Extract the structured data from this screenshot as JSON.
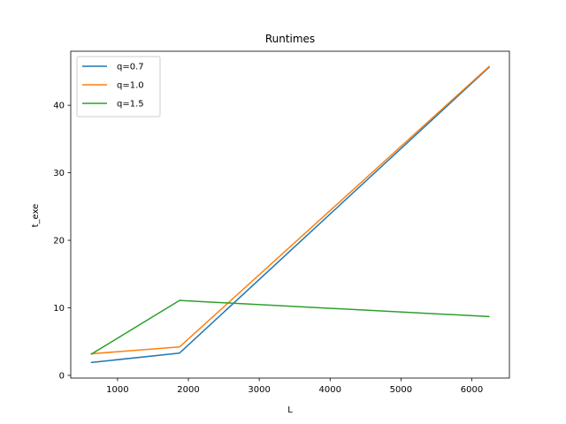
{
  "chart_data": {
    "type": "line",
    "title": "Runtimes",
    "xlabel": "L",
    "ylabel": "t_exe",
    "xlim": [
      340,
      6530
    ],
    "ylim": [
      -0.4,
      48.0
    ],
    "xticks": [
      1000,
      2000,
      3000,
      4000,
      5000,
      6000
    ],
    "yticks": [
      0,
      10,
      20,
      30,
      40
    ],
    "grid": false,
    "legend_position": "top-left",
    "series": [
      {
        "name": "q=0.7",
        "color": "#1f77b4",
        "x": [
          625,
          1875,
          6250
        ],
        "y": [
          1.9,
          3.3,
          45.7
        ]
      },
      {
        "name": "q=1.0",
        "color": "#ff7f0e",
        "x": [
          625,
          1875,
          6250
        ],
        "y": [
          3.2,
          4.2,
          45.8
        ]
      },
      {
        "name": "q=1.5",
        "color": "#2ca02c",
        "x": [
          625,
          1875,
          6250
        ],
        "y": [
          3.1,
          11.1,
          8.7
        ]
      }
    ]
  }
}
